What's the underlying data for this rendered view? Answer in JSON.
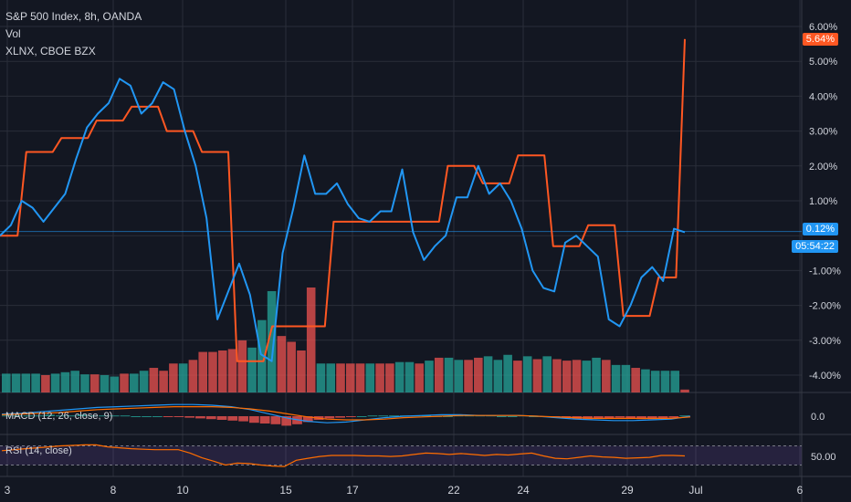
{
  "header": {
    "title": "S&P 500 Index, 8h, OANDA",
    "vol_label": "Vol",
    "compare_label": "XLNX, CBOE BZX"
  },
  "macd_label": "MACD (12, 26, close, 9)",
  "rsi_label": "RSI (14, close)",
  "badges": {
    "spx_last": "5.64%",
    "xlnx_last": "0.12%",
    "countdown": "05:54:22"
  },
  "colors": {
    "background": "#131722",
    "spx": "#ff5722",
    "xlnx": "#2196f3",
    "vol_up": "#26a69a",
    "vol_down": "#ef5350",
    "rsi": "#ff6d00",
    "rsi_band": "#7e57c2"
  },
  "chart_data": {
    "type": "line",
    "x_ticks": [
      "3",
      "8",
      "10",
      "15",
      "17",
      "22",
      "24",
      "29",
      "Jul",
      "6"
    ],
    "y_ticks": [
      "6.00%",
      "5.00%",
      "4.00%",
      "3.00%",
      "2.00%",
      "1.00%",
      "-1.00%",
      "-2.00%",
      "-3.00%",
      "-4.00%"
    ],
    "ylim": [
      -4.5,
      6.2
    ],
    "series": [
      {
        "name": "S&P 500 Index, 8h, OANDA",
        "color": "#ff5722",
        "step": true,
        "values": [
          0.0,
          0.0,
          0.0,
          2.4,
          2.4,
          2.4,
          2.4,
          2.8,
          2.8,
          2.8,
          2.8,
          3.3,
          3.3,
          3.3,
          3.3,
          3.7,
          3.7,
          3.7,
          3.7,
          3.0,
          3.0,
          3.0,
          3.0,
          2.4,
          2.4,
          2.4,
          2.4,
          -3.6,
          -3.6,
          -3.6,
          -3.6,
          -2.6,
          -2.6,
          -2.6,
          -2.6,
          -2.6,
          -2.6,
          -2.6,
          0.4,
          0.4,
          0.4,
          0.4,
          0.4,
          0.4,
          0.4,
          0.4,
          0.4,
          0.4,
          0.4,
          0.4,
          0.4,
          2.0,
          2.0,
          2.0,
          2.0,
          1.5,
          1.5,
          1.5,
          1.5,
          2.3,
          2.3,
          2.3,
          2.3,
          -0.3,
          -0.3,
          -0.3,
          -0.3,
          0.3,
          0.3,
          0.3,
          0.3,
          -2.3,
          -2.3,
          -2.3,
          -2.3,
          -1.2,
          -1.2,
          -1.2,
          5.64
        ]
      },
      {
        "name": "XLNX, CBOE BZX",
        "color": "#2196f3",
        "values": [
          0.0,
          0.3,
          1.0,
          0.8,
          0.4,
          0.8,
          1.2,
          2.2,
          3.1,
          3.5,
          3.8,
          4.5,
          4.3,
          3.5,
          3.8,
          4.4,
          4.2,
          3.0,
          2.0,
          0.5,
          -2.4,
          -1.6,
          -0.8,
          -1.7,
          -3.4,
          -3.6,
          -0.5,
          0.8,
          2.3,
          1.2,
          1.2,
          1.5,
          0.9,
          0.5,
          0.4,
          0.7,
          0.7,
          1.9,
          0.1,
          -0.7,
          -0.3,
          0.0,
          1.1,
          1.1,
          2.0,
          1.2,
          1.5,
          1.0,
          0.2,
          -1.0,
          -1.5,
          -1.6,
          -0.2,
          0.0,
          -0.3,
          -0.6,
          -2.4,
          -2.6,
          -2.0,
          -1.2,
          -0.9,
          -1.3,
          0.2,
          0.1
        ]
      }
    ],
    "volume": {
      "values": [
        26,
        26,
        26,
        26,
        24,
        26,
        28,
        30,
        25,
        25,
        24,
        22,
        26,
        26,
        30,
        34,
        30,
        40,
        40,
        45,
        56,
        56,
        58,
        60,
        72,
        62,
        100,
        140,
        78,
        70,
        58,
        145,
        40,
        40,
        40,
        40,
        40,
        40,
        40,
        40,
        42,
        42,
        40,
        44,
        48,
        48,
        45,
        45,
        48,
        50,
        45,
        52,
        44,
        50,
        46,
        50,
        46,
        44,
        45,
        44,
        48,
        45,
        38,
        38,
        34,
        32,
        30,
        30,
        30,
        4
      ],
      "up": [
        1,
        1,
        1,
        1,
        0,
        1,
        1,
        1,
        1,
        0,
        1,
        1,
        0,
        1,
        1,
        0,
        0,
        0,
        1,
        0,
        0,
        0,
        0,
        0,
        0,
        1,
        1,
        1,
        0,
        0,
        0,
        0,
        1,
        1,
        0,
        0,
        0,
        1,
        0,
        0,
        1,
        1,
        0,
        1,
        0,
        1,
        1,
        0,
        0,
        1,
        1,
        1,
        0,
        1,
        0,
        1,
        0,
        0,
        0,
        1,
        1,
        0,
        1,
        1,
        0,
        1,
        1,
        1,
        1,
        0
      ]
    },
    "macd": {
      "y_tick": "0.0",
      "histogram": [
        0.1,
        0.1,
        0.1,
        0.1,
        0.2,
        0.1,
        0.1,
        0.2,
        0.1,
        0.1,
        0.1,
        0.1,
        0.0,
        0.0,
        0.0,
        -0.1,
        -0.1,
        -0.2,
        -0.3,
        -0.4,
        -0.5,
        -0.6,
        -0.7,
        -0.9,
        -1.0,
        -1.1,
        -1.3,
        -1.1,
        -0.8,
        -0.5,
        -0.3,
        -0.2,
        -0.1,
        0.0,
        0.1,
        0.1,
        0.1,
        0.1,
        0.1,
        0.1,
        0.0,
        0.0,
        0.1,
        0.1,
        0.1,
        0.1,
        0.0,
        0.0,
        0.1,
        0.0,
        -0.1,
        -0.2,
        -0.3,
        -0.4,
        -0.4,
        -0.3,
        -0.3,
        -0.2,
        -0.3,
        -0.4,
        -0.4,
        -0.3,
        -0.2,
        0.1
      ],
      "macd_line": [
        0.3,
        0.4,
        0.6,
        0.8,
        1.0,
        1.2,
        1.3,
        1.4,
        1.5,
        1.6,
        1.6,
        1.5,
        1.3,
        0.9,
        0.3,
        -0.3,
        -0.7,
        -0.9,
        -0.8,
        -0.5,
        -0.2,
        0.0,
        0.1,
        0.2,
        0.2,
        0.1,
        0.1,
        0.1,
        0.0,
        -0.2,
        -0.4,
        -0.5,
        -0.6,
        -0.6,
        -0.5,
        -0.4,
        0.0
      ],
      "signal_line": [
        0.2,
        0.3,
        0.4,
        0.5,
        0.7,
        0.9,
        1.0,
        1.1,
        1.2,
        1.3,
        1.3,
        1.3,
        1.2,
        1.0,
        0.7,
        0.3,
        -0.1,
        -0.4,
        -0.5,
        -0.5,
        -0.4,
        -0.2,
        -0.1,
        0.0,
        0.1,
        0.1,
        0.1,
        0.1,
        0.0,
        -0.1,
        -0.2,
        -0.3,
        -0.3,
        -0.3,
        -0.3,
        -0.3,
        -0.1
      ]
    },
    "rsi": {
      "y_tick": "50.00",
      "band": [
        30,
        70
      ],
      "values": [
        60,
        62,
        64,
        66,
        68,
        70,
        71,
        72,
        72,
        68,
        66,
        64,
        63,
        62,
        62,
        62,
        55,
        45,
        38,
        30,
        34,
        33,
        30,
        28,
        27,
        40,
        44,
        48,
        50,
        50,
        50,
        49,
        49,
        48,
        49,
        52,
        55,
        54,
        52,
        54,
        52,
        50,
        52,
        51,
        53,
        55,
        49,
        44,
        43,
        46,
        49,
        47,
        46,
        44,
        45,
        46,
        50,
        50,
        49
      ]
    }
  }
}
